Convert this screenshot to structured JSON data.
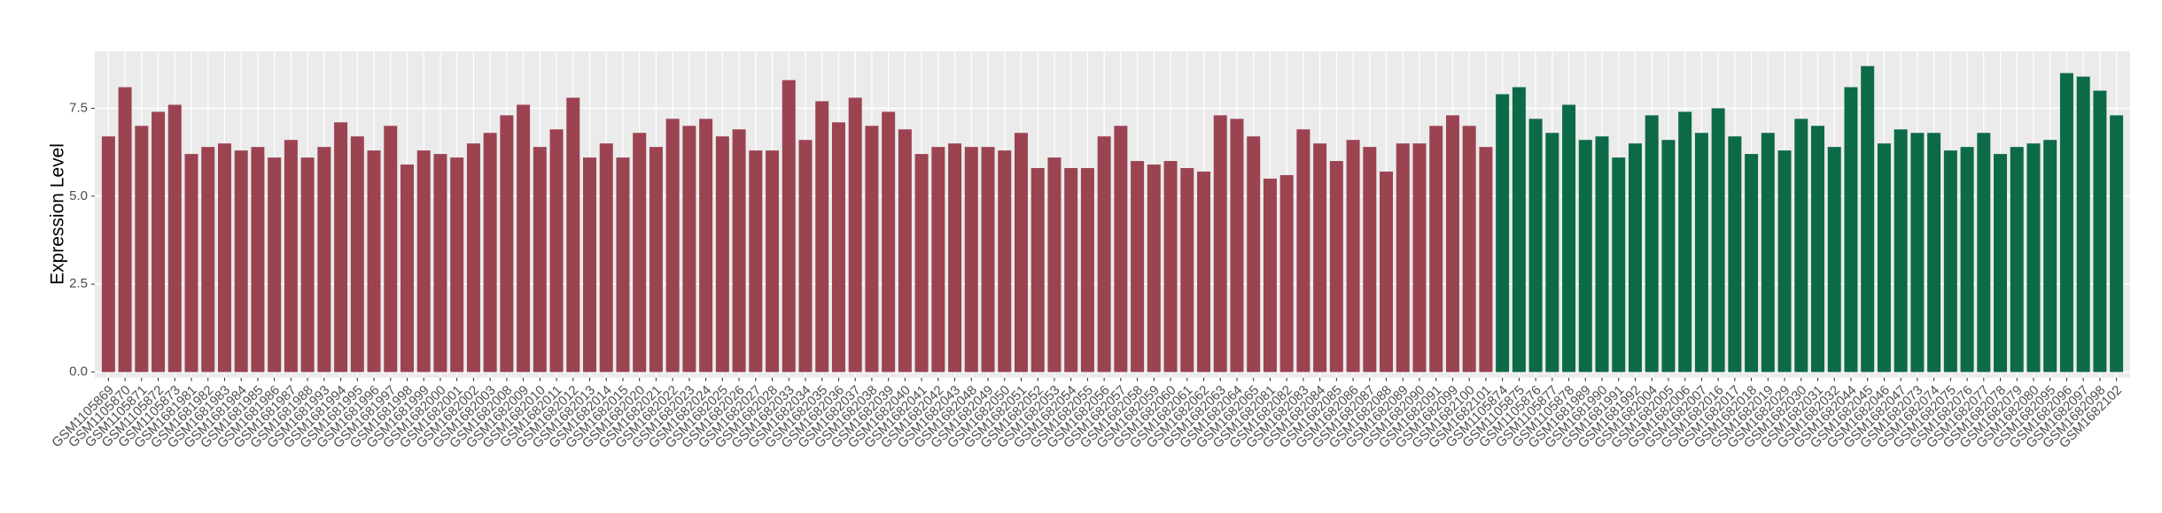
{
  "chart_data": {
    "type": "bar",
    "y_label": "Expression Level",
    "categories": [
      "GSM1105869",
      "GSM1105870",
      "GSM1105871",
      "GSM1105872",
      "GSM1105873",
      "GSM1681981",
      "GSM1681982",
      "GSM1681983",
      "GSM1681984",
      "GSM1681985",
      "GSM1681986",
      "GSM1681987",
      "GSM1681988",
      "GSM1681993",
      "GSM1681994",
      "GSM1681995",
      "GSM1681996",
      "GSM1681997",
      "GSM1681998",
      "GSM1681999",
      "GSM1682000",
      "GSM1682001",
      "GSM1682002",
      "GSM1682003",
      "GSM1682008",
      "GSM1682009",
      "GSM1682010",
      "GSM1682011",
      "GSM1682012",
      "GSM1682013",
      "GSM1682014",
      "GSM1682015",
      "GSM1682020",
      "GSM1682021",
      "GSM1682022",
      "GSM1682023",
      "GSM1682024",
      "GSM1682025",
      "GSM1682026",
      "GSM1682027",
      "GSM1682028",
      "GSM1682033",
      "GSM1682034",
      "GSM1682035",
      "GSM1682036",
      "GSM1682037",
      "GSM1682038",
      "GSM1682039",
      "GSM1682040",
      "GSM1682041",
      "GSM1682042",
      "GSM1682043",
      "GSM1682048",
      "GSM1682049",
      "GSM1682050",
      "GSM1682051",
      "GSM1682052",
      "GSM1682053",
      "GSM1682054",
      "GSM1682055",
      "GSM1682056",
      "GSM1682057",
      "GSM1682058",
      "GSM1682059",
      "GSM1682060",
      "GSM1682061",
      "GSM1682062",
      "GSM1682063",
      "GSM1682064",
      "GSM1682065",
      "GSM1682081",
      "GSM1682082",
      "GSM1682083",
      "GSM1682084",
      "GSM1682085",
      "GSM1682086",
      "GSM1682087",
      "GSM1682088",
      "GSM1682089",
      "GSM1682090",
      "GSM1682091",
      "GSM1682099",
      "GSM1682100",
      "GSM1682101",
      "GSM1105874",
      "GSM1105875",
      "GSM1105876",
      "GSM1105877",
      "GSM1105878",
      "GSM1681989",
      "GSM1681990",
      "GSM1681991",
      "GSM1681992",
      "GSM1682004",
      "GSM1682005",
      "GSM1682006",
      "GSM1682007",
      "GSM1682016",
      "GSM1682017",
      "GSM1682018",
      "GSM1682019",
      "GSM1682029",
      "GSM1682030",
      "GSM1682031",
      "GSM1682032",
      "GSM1682044",
      "GSM1682045",
      "GSM1682046",
      "GSM1682047",
      "GSM1682073",
      "GSM1682074",
      "GSM1682075",
      "GSM1682076",
      "GSM1682077",
      "GSM1682078",
      "GSM1682079",
      "GSM1682080",
      "GSM1682095",
      "GSM1682096",
      "GSM1682097",
      "GSM1682098",
      "GSM1682102"
    ],
    "values": [
      6.7,
      8.1,
      7.0,
      7.4,
      7.6,
      6.2,
      6.4,
      6.5,
      6.3,
      6.4,
      6.1,
      6.6,
      6.1,
      6.4,
      7.1,
      6.7,
      6.3,
      7.0,
      5.9,
      6.3,
      6.2,
      6.1,
      6.5,
      6.8,
      7.3,
      7.6,
      6.4,
      6.9,
      7.8,
      6.1,
      6.5,
      6.1,
      6.8,
      6.4,
      7.2,
      7.0,
      7.2,
      6.7,
      6.9,
      6.3,
      6.3,
      8.3,
      6.6,
      7.7,
      7.1,
      7.8,
      7.0,
      7.4,
      6.9,
      6.2,
      6.4,
      6.5,
      6.4,
      6.4,
      6.3,
      6.8,
      5.8,
      6.1,
      5.8,
      5.8,
      6.7,
      7.0,
      6.0,
      5.9,
      6.0,
      5.8,
      5.7,
      7.3,
      7.2,
      6.7,
      5.5,
      5.6,
      6.9,
      6.5,
      6.0,
      6.6,
      6.4,
      5.7,
      6.5,
      6.5,
      7.0,
      7.3,
      7.0,
      6.4,
      7.9,
      8.1,
      7.2,
      6.8,
      7.6,
      6.6,
      6.7,
      6.1,
      6.5,
      7.3,
      6.6,
      7.4,
      6.8,
      7.5,
      6.7,
      6.2,
      6.8,
      6.3,
      7.2,
      7.0,
      6.4,
      8.1,
      8.7,
      6.5,
      6.9,
      6.8,
      6.8,
      6.3,
      6.4,
      6.8,
      6.2,
      6.4,
      6.5,
      6.6,
      8.5,
      8.4,
      8.0,
      7.3
    ],
    "colors": [
      "#9c4352",
      "#9c4352",
      "#9c4352",
      "#9c4352",
      "#9c4352",
      "#9c4352",
      "#9c4352",
      "#9c4352",
      "#9c4352",
      "#9c4352",
      "#9c4352",
      "#9c4352",
      "#9c4352",
      "#9c4352",
      "#9c4352",
      "#9c4352",
      "#9c4352",
      "#9c4352",
      "#9c4352",
      "#9c4352",
      "#9c4352",
      "#9c4352",
      "#9c4352",
      "#9c4352",
      "#9c4352",
      "#9c4352",
      "#9c4352",
      "#9c4352",
      "#9c4352",
      "#9c4352",
      "#9c4352",
      "#9c4352",
      "#9c4352",
      "#9c4352",
      "#9c4352",
      "#9c4352",
      "#9c4352",
      "#9c4352",
      "#9c4352",
      "#9c4352",
      "#9c4352",
      "#9c4352",
      "#9c4352",
      "#9c4352",
      "#9c4352",
      "#9c4352",
      "#9c4352",
      "#9c4352",
      "#9c4352",
      "#9c4352",
      "#9c4352",
      "#9c4352",
      "#9c4352",
      "#9c4352",
      "#9c4352",
      "#9c4352",
      "#9c4352",
      "#9c4352",
      "#9c4352",
      "#9c4352",
      "#9c4352",
      "#9c4352",
      "#9c4352",
      "#9c4352",
      "#9c4352",
      "#9c4352",
      "#9c4352",
      "#9c4352",
      "#9c4352",
      "#9c4352",
      "#9c4352",
      "#9c4352",
      "#9c4352",
      "#9c4352",
      "#9c4352",
      "#9c4352",
      "#9c4352",
      "#9c4352",
      "#9c4352",
      "#9c4352",
      "#9c4352",
      "#9c4352",
      "#9c4352",
      "#9c4352",
      "#0d6a47",
      "#0d6a47",
      "#0d6a47",
      "#0d6a47",
      "#0d6a47",
      "#0d6a47",
      "#0d6a47",
      "#0d6a47",
      "#0d6a47",
      "#0d6a47",
      "#0d6a47",
      "#0d6a47",
      "#0d6a47",
      "#0d6a47",
      "#0d6a47",
      "#0d6a47",
      "#0d6a47",
      "#0d6a47",
      "#0d6a47",
      "#0d6a47",
      "#0d6a47",
      "#0d6a47",
      "#0d6a47",
      "#0d6a47",
      "#0d6a47",
      "#0d6a47",
      "#0d6a47",
      "#0d6a47",
      "#0d6a47",
      "#0d6a47",
      "#0d6a47",
      "#0d6a47",
      "#0d6a47",
      "#0d6a47",
      "#0d6a47",
      "#0d6a47",
      "#0d6a47",
      "#0d6a47"
    ],
    "ylim": [
      -0.16,
      9.12
    ],
    "yticks": [
      {
        "value": 0,
        "label": "0.0"
      },
      {
        "value": 2.5,
        "label": "2.5"
      },
      {
        "value": 5,
        "label": "5.0"
      },
      {
        "value": 7.5,
        "label": "7.5"
      }
    ],
    "grid": true
  }
}
